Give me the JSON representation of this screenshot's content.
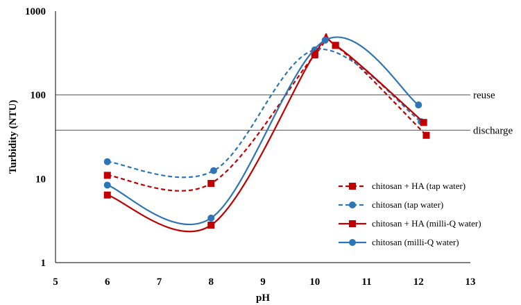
{
  "chart_data": {
    "type": "line",
    "xlabel": "pH",
    "ylabel": "Turbidity (NTU)",
    "xlim": [
      5,
      13
    ],
    "ylim": [
      1,
      1000
    ],
    "yscale": "log",
    "x_ticks": [
      "5",
      "6",
      "7",
      "8",
      "9",
      "10",
      "11",
      "12",
      "13"
    ],
    "y_ticks": [
      "1",
      "10",
      "100",
      "1000"
    ],
    "grid": false,
    "legend_position": "right",
    "series": [
      {
        "name": "chitosan + HA (tap water)",
        "color": "#c00000",
        "line_style": "dashed",
        "marker": "square",
        "points": [
          [
            6,
            11
          ],
          [
            8,
            8.8
          ],
          [
            10,
            300
          ],
          [
            10.4,
            390
          ],
          [
            12.15,
            33
          ]
        ]
      },
      {
        "name": "chitosan (tap water)",
        "color": "#2e75b6",
        "line_style": "dashed",
        "marker": "circle",
        "points": [
          [
            6,
            16
          ],
          [
            8.05,
            12.5
          ],
          [
            10,
            345
          ],
          [
            12.05,
            48
          ]
        ]
      },
      {
        "name": "chitosan + HA (milli-Q water)",
        "color": "#c00000",
        "line_style": "solid",
        "marker": "square",
        "points": [
          [
            6,
            6.4
          ],
          [
            8,
            2.8
          ],
          [
            10,
            310
          ],
          [
            10.4,
            390
          ],
          [
            12.1,
            47
          ]
        ]
      },
      {
        "name": "chitosan (milli-Q water)",
        "color": "#2e75b6",
        "line_style": "solid",
        "marker": "circle",
        "points": [
          [
            6,
            8.4
          ],
          [
            8,
            3.4
          ],
          [
            10.2,
            450
          ],
          [
            12,
            76
          ]
        ]
      }
    ],
    "reference_lines": [
      {
        "label": "reuse",
        "y": 100
      },
      {
        "label": "discharge",
        "y": 38
      }
    ]
  }
}
